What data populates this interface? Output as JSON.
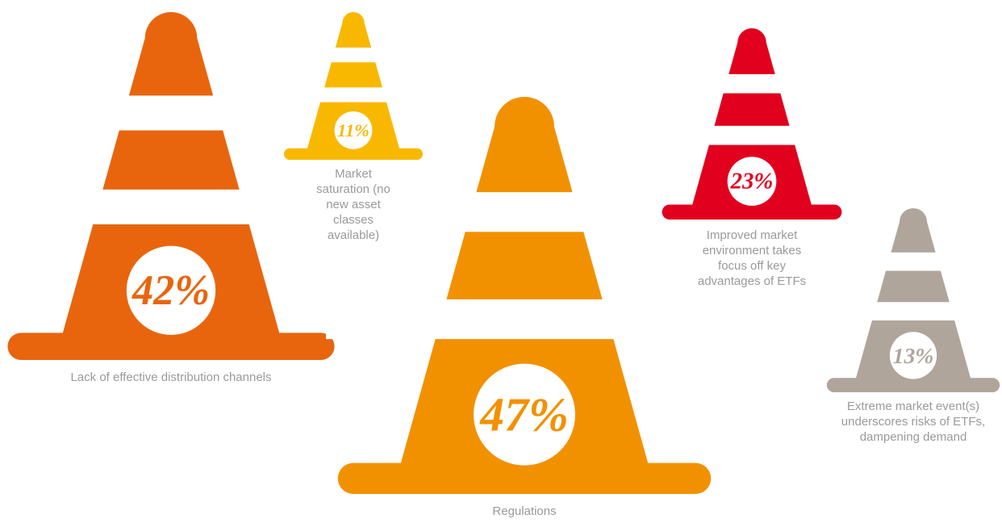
{
  "chart_data": {
    "type": "cone",
    "categories": [
      "Lack of effective distribution channels",
      "Market saturation (no new asset classes available)",
      "Regulations",
      "Improved market environment takes focus off key advantages of ETFs",
      "Extreme market event(s) underscores risks of ETFs, dampening demand"
    ],
    "values": [
      42,
      11,
      47,
      23,
      13
    ],
    "value_labels": [
      "42%",
      "11%",
      "47%",
      "23%",
      "13%"
    ],
    "colors": [
      "#e8650e",
      "#f9b800",
      "#f29100",
      "#e1001e",
      "#b0a59a"
    ]
  }
}
